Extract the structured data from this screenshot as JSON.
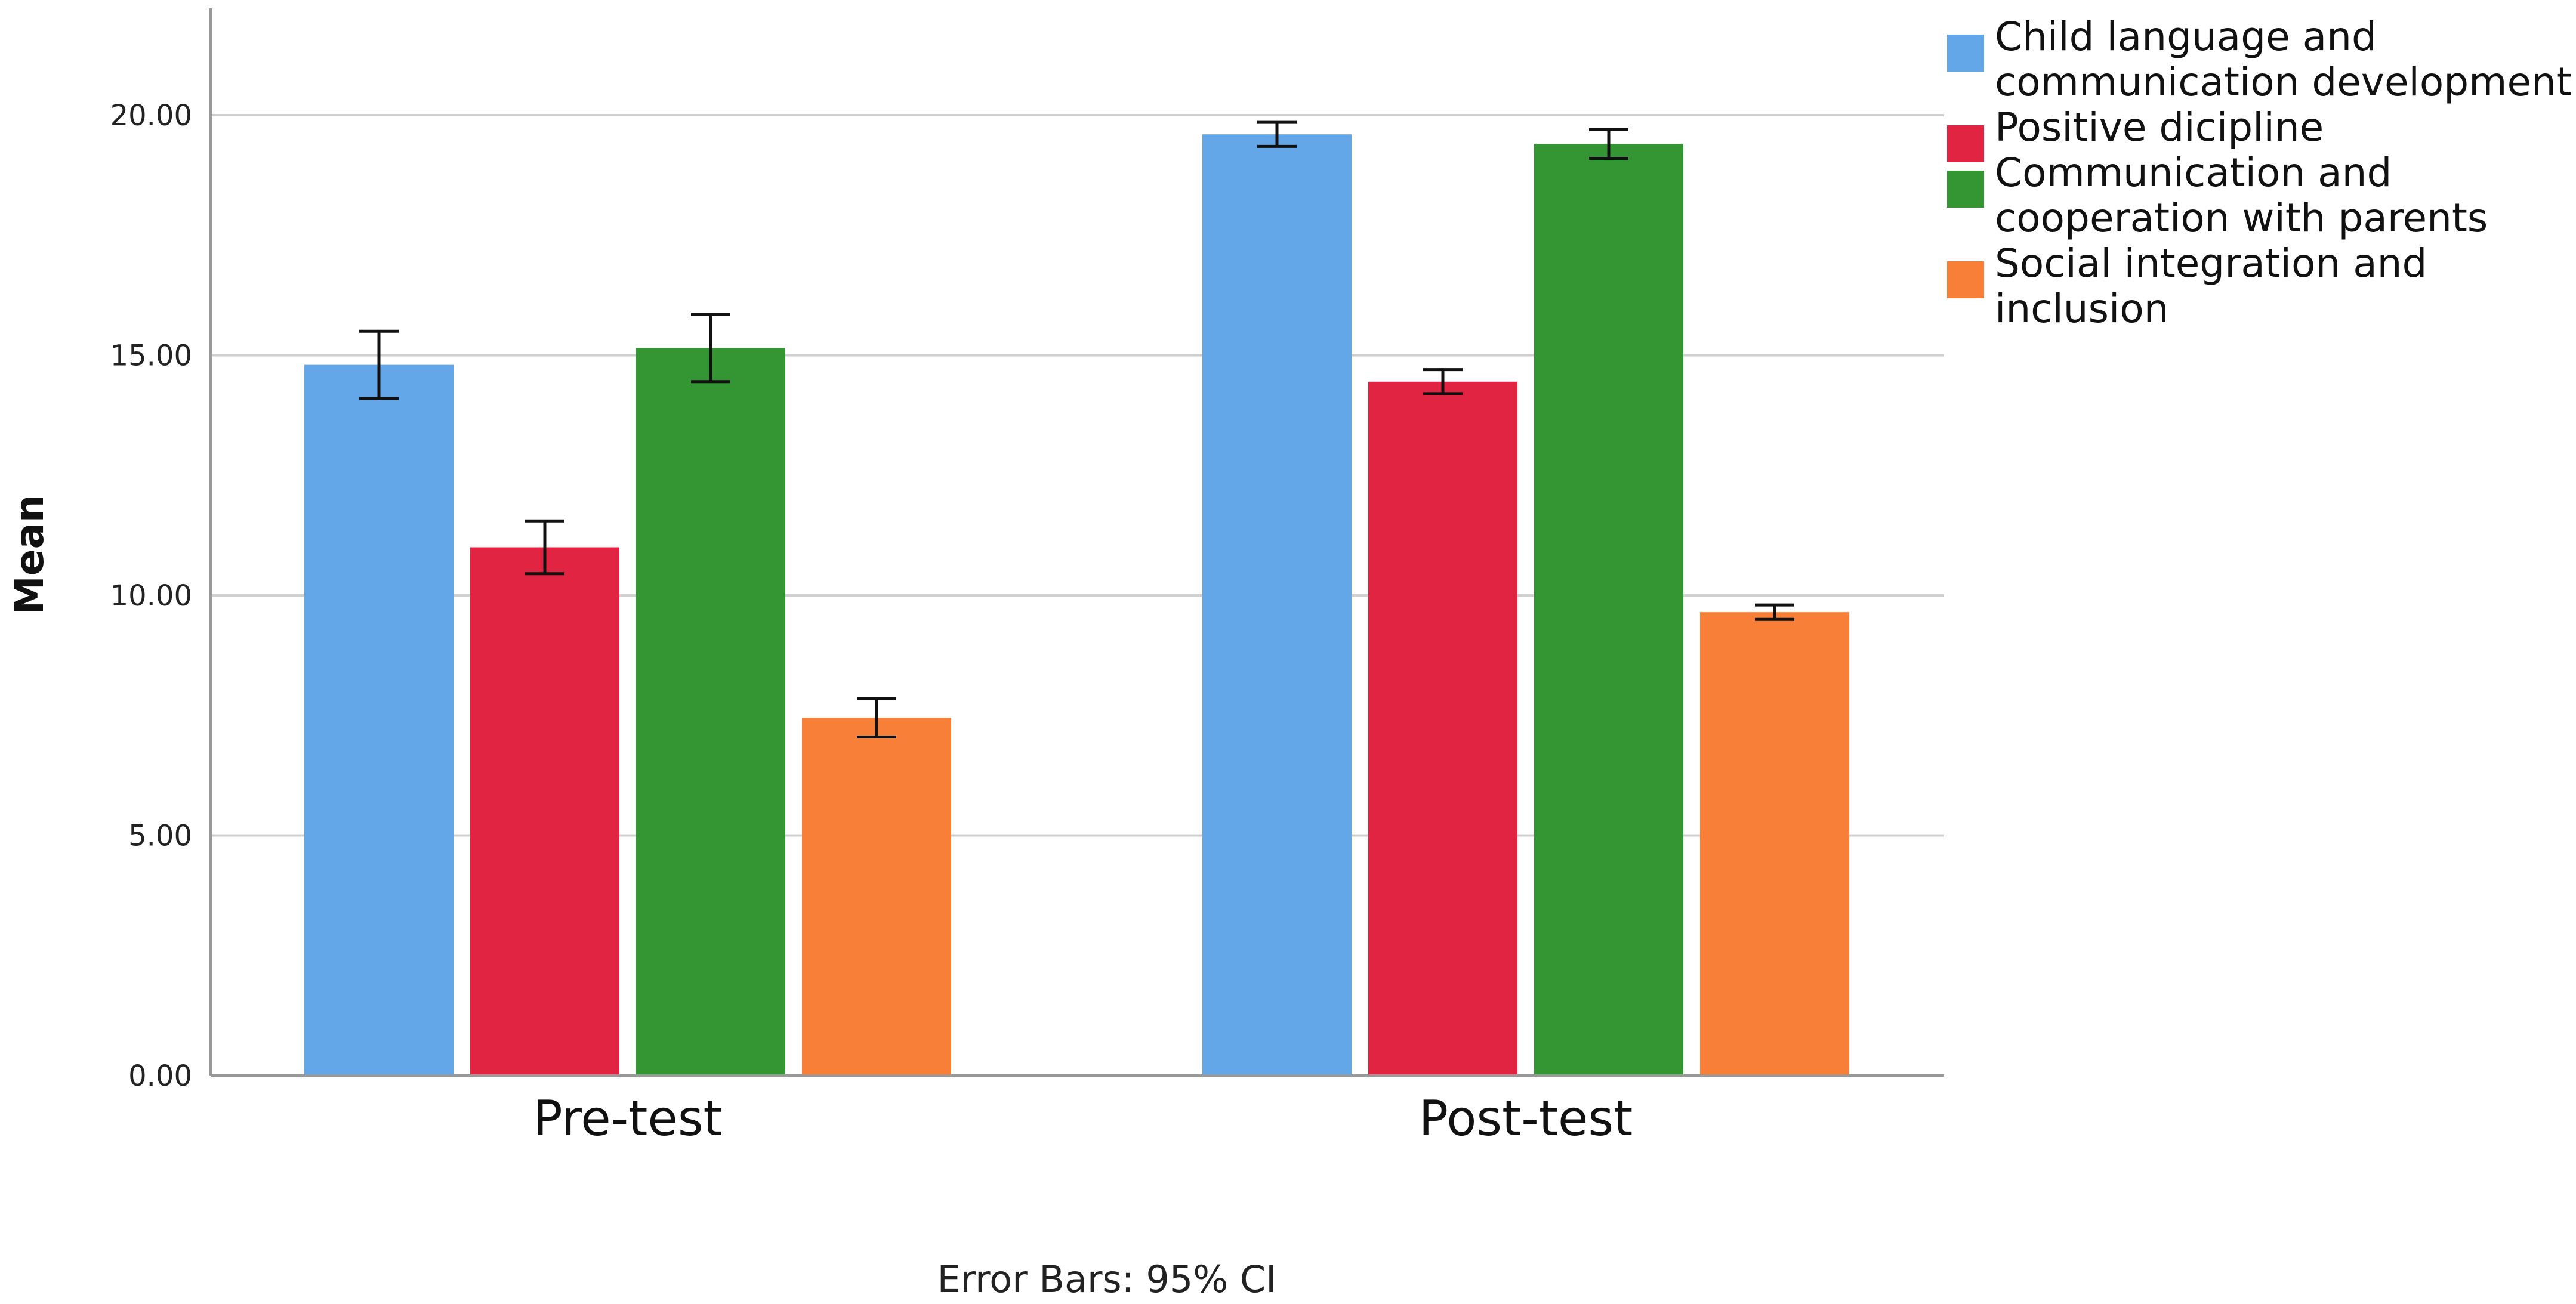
{
  "chart_data": {
    "type": "bar",
    "categories": [
      "Pre-test",
      "Post-test"
    ],
    "series": [
      {
        "name": "Child language and communication development",
        "legend_lines": [
          "Child language and",
          "communication development"
        ],
        "color": "#64a7e8",
        "values": [
          14.8,
          19.6
        ],
        "ci": [
          [
            14.1,
            15.5
          ],
          [
            19.35,
            19.85
          ]
        ]
      },
      {
        "name": "Positive dicipline",
        "legend_lines": [
          "Positive dicipline"
        ],
        "color": "#e02442",
        "values": [
          11.0,
          14.45
        ],
        "ci": [
          [
            10.45,
            11.55
          ],
          [
            14.2,
            14.7
          ]
        ]
      },
      {
        "name": "Communication and cooperation with parents",
        "legend_lines": [
          "Communication and",
          "cooperation with parents"
        ],
        "color": "#339632",
        "values": [
          15.15,
          19.4
        ],
        "ci": [
          [
            14.45,
            15.85
          ],
          [
            19.1,
            19.7
          ]
        ]
      },
      {
        "name": "Social integration and inclusion",
        "legend_lines": [
          "Social integration and",
          "inclusion"
        ],
        "color": "#f77f38",
        "values": [
          7.45,
          9.65
        ],
        "ci": [
          [
            7.05,
            7.85
          ],
          [
            9.5,
            9.8
          ]
        ]
      }
    ],
    "ylabel": "Mean",
    "xlabel": "",
    "ylim": [
      0,
      22
    ],
    "yticks": [
      0,
      5,
      10,
      15,
      20
    ],
    "ytick_labels": [
      "0.00",
      "5.00",
      "10.00",
      "15.00",
      "20.00"
    ],
    "grid": true,
    "legend_position": "top-right",
    "footer": "Error Bars: 95% CI"
  }
}
